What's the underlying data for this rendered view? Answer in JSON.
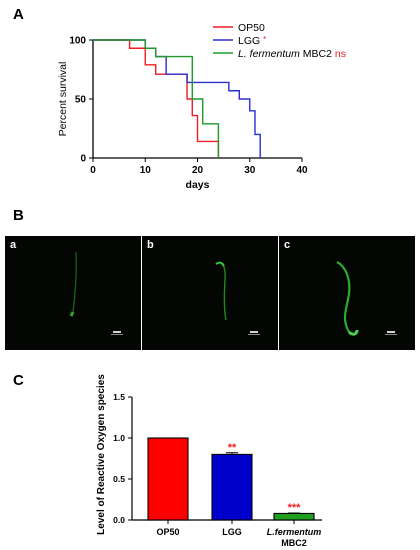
{
  "panels": {
    "a_letter": "A",
    "b_letter": "B",
    "c_letter": "C",
    "micro": [
      {
        "label": "a"
      },
      {
        "label": "b"
      },
      {
        "label": "c"
      }
    ]
  },
  "chart_data": [
    {
      "type": "line",
      "style": "step",
      "xlabel": "days",
      "ylabel": "Percent survival",
      "xlim": [
        0,
        40
      ],
      "ylim": [
        0,
        100
      ],
      "xticks": [
        0,
        10,
        20,
        30,
        40
      ],
      "yticks": [
        0,
        50,
        100
      ],
      "grid": false,
      "legend_position": "top-right",
      "series": [
        {
          "name": "OP50",
          "color": "#ee1c25",
          "x": [
            0,
            7,
            10,
            12,
            17,
            18,
            19,
            20,
            24
          ],
          "y": [
            100,
            93,
            79,
            71,
            71,
            50,
            36,
            14,
            0
          ]
        },
        {
          "name": "LGG",
          "color": "#2b2fcc",
          "x": [
            0,
            10,
            12,
            14,
            18,
            26,
            28,
            30,
            31,
            32
          ],
          "y": [
            100,
            93,
            86,
            71,
            64,
            57,
            50,
            40,
            20,
            0
          ]
        },
        {
          "name": "L. fermentum MBC2",
          "color": "#1f9a2b",
          "x": [
            0,
            10,
            12,
            15,
            19,
            21,
            24
          ],
          "y": [
            100,
            93,
            86,
            86,
            50,
            29,
            0
          ]
        }
      ],
      "legend": [
        {
          "italic": "",
          "text": "OP50",
          "mark": ""
        },
        {
          "italic": "",
          "text": "LGG",
          "mark": "*"
        },
        {
          "italic": "L. fermentum",
          "text": "MBC2",
          "mark": "ns"
        }
      ]
    },
    {
      "type": "bar",
      "ylabel": "Level of Reactive Oxygen species",
      "ylim": [
        0,
        1.5
      ],
      "yticks": [
        "0.0",
        "0.5",
        "1.0",
        "1.5"
      ],
      "categories": [
        {
          "italic": "",
          "text": "OP50"
        },
        {
          "italic": "",
          "text": "LGG"
        },
        {
          "italic": "L.fermentum",
          "text": "MBC2"
        }
      ],
      "values": [
        1.0,
        0.8,
        0.08
      ],
      "errors": [
        0,
        0.02,
        0.005
      ],
      "colors": [
        "#ff0000",
        "#0000cc",
        "#1e9d1e"
      ],
      "significance": [
        "",
        "**",
        "***"
      ],
      "significance_color": "#ee1c25"
    }
  ]
}
